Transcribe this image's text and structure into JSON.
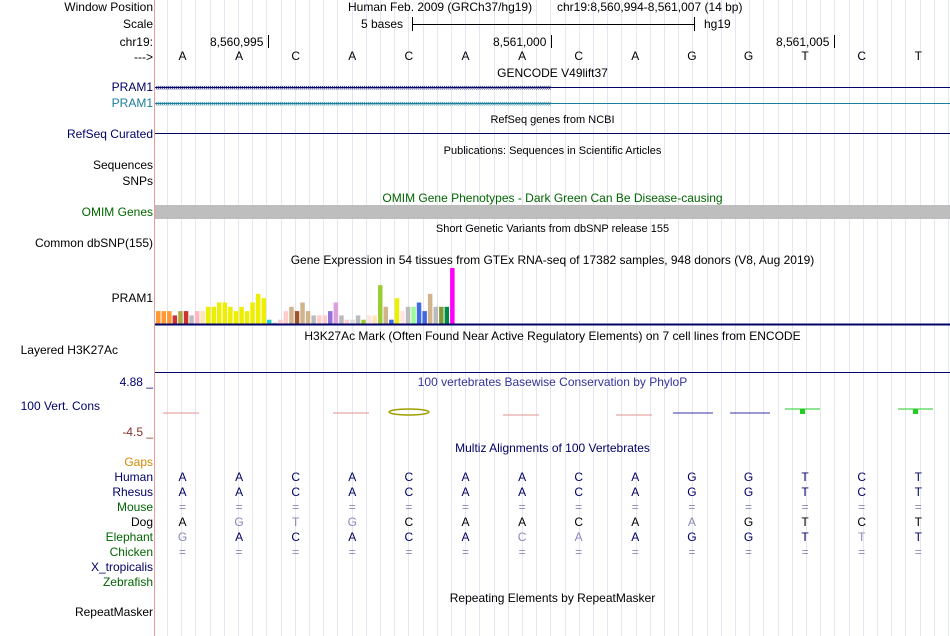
{
  "colors": {
    "navy": "#000066",
    "pram1_teal": "#1a7d9c",
    "omim_green": "#006600",
    "grey_band": "#bebebe",
    "conserv_neg": "#8b2d2d",
    "gaps_orange": "#d08a00",
    "green_species": "#006600"
  },
  "labels": {
    "window_position": "Window Position",
    "scale": "Scale",
    "chr": "chr19:",
    "arrow": "--->",
    "pram1_a": "PRAM1",
    "pram1_b": "PRAM1",
    "refseq": "RefSeq Curated",
    "sequences": "Sequences",
    "snps": "SNPs",
    "omim": "OMIM Genes",
    "common_dbsnp": "Common dbSNP(155)",
    "gtex_gene": "PRAM1",
    "h3k27ac": "Layered H3K27Ac",
    "cons_max": "4.88 _",
    "cons_name": "100 Vert. Cons",
    "cons_min": "-4.5 _",
    "gaps": "Gaps",
    "species": [
      "Human",
      "Rhesus",
      "Mouse",
      "Dog",
      "Elephant",
      "Chicken",
      "X_tropicalis",
      "Zebrafish"
    ],
    "repeatmasker": "RepeatMasker"
  },
  "header": {
    "assembly": "Human Feb. 2009 (GRCh37/hg19)",
    "position": "chr19:8,560,994-8,561,007 (14 bp)",
    "scale_text": "5 bases",
    "scale_db": "hg19",
    "ticks": [
      "8,560,995",
      "8,561,000",
      "8,561,005"
    ]
  },
  "sequence": [
    "A",
    "A",
    "C",
    "A",
    "C",
    "A",
    "A",
    "C",
    "A",
    "G",
    "G",
    "T",
    "C",
    "T"
  ],
  "track_titles": {
    "gencode": "GENCODE V49lift37",
    "refseq": "RefSeq genes from NCBI",
    "publications": "Publications: Sequences in Scientific Articles",
    "omim": "OMIM Gene Phenotypes - Dark Green Can Be Disease-causing",
    "dbsnp": "Short Genetic Variants from dbSNP release 155",
    "gtex": "Gene Expression in 54 tissues from GTEx RNA-seq of 17382 samples, 948 donors (V8, Aug 2019)",
    "h3k27ac": "H3K27Ac Mark (Often Found Near Active Regulatory Elements) on 7 cell lines from ENCODE",
    "phylop": "100 vertebrates Basewise Conservation by PhyloP",
    "multiz": "Multiz Alignments of 100 Vertebrates",
    "repeatmasker": "Repeating Elements by RepeatMasker"
  },
  "alignment": {
    "Human": [
      "A",
      "A",
      "C",
      "A",
      "C",
      "A",
      "A",
      "C",
      "A",
      "G",
      "G",
      "T",
      "C",
      "T"
    ],
    "Rhesus": [
      "A",
      "A",
      "C",
      "A",
      "C",
      "A",
      "A",
      "C",
      "A",
      "G",
      "G",
      "T",
      "C",
      "T"
    ],
    "Mouse": [
      "=",
      "=",
      "=",
      "=",
      "=",
      "=",
      "=",
      "=",
      "=",
      "=",
      "=",
      "=",
      "=",
      "="
    ],
    "Dog": [
      "A",
      "G",
      "T",
      "G",
      "C",
      "A",
      "A",
      "C",
      "A",
      "A",
      "G",
      "T",
      "C",
      "T"
    ],
    "Elephant": [
      "G",
      "A",
      "C",
      "A",
      "C",
      "A",
      "C",
      "A",
      "A",
      "G",
      "G",
      "T",
      "T",
      "T"
    ],
    "Chicken": [
      "=",
      "=",
      "=",
      "=",
      "=",
      "=",
      "=",
      "=",
      "=",
      "=",
      "=",
      "=",
      "=",
      "="
    ]
  },
  "chart_data": {
    "type": "bar",
    "title": "Gene Expression in 54 tissues from GTEx RNA-seq of 17382 samples, 948 donors (V8, Aug 2019)",
    "gene": "PRAM1",
    "ylabel": "",
    "values": [
      3,
      3,
      3,
      2,
      3,
      3,
      2,
      3,
      3,
      4,
      4,
      5,
      5,
      4,
      3,
      4,
      3,
      5,
      7,
      6,
      1,
      0.3,
      1,
      3,
      4,
      3,
      5,
      3,
      2,
      2,
      2,
      3,
      5,
      2,
      1,
      1,
      2,
      1,
      2,
      2,
      9,
      4,
      1,
      6,
      3,
      4,
      4,
      5,
      3,
      7,
      4,
      4,
      4,
      13
    ],
    "colors": [
      "#ff9933",
      "#ff9933",
      "#ff9933",
      "#cc3333",
      "#aaaa44",
      "#cc3333",
      "#bbbbbb",
      "#ffb6c1",
      "#ffe4b5",
      "#eeee00",
      "#eeee00",
      "#eeee00",
      "#eeee00",
      "#eeee00",
      "#eeee00",
      "#eeee00",
      "#eeee00",
      "#eeee00",
      "#eeee00",
      "#eeee00",
      "#22cccc",
      "#bbbbbb",
      "#ffcccc",
      "#ffcccc",
      "#d2b48c",
      "#a0522d",
      "#d2b48c",
      "#d2b48c",
      "#bbbbbb",
      "#ffcccc",
      "#ffcccc",
      "#9370db",
      "#dda0dd",
      "#bbbbbb",
      "#ffcccc",
      "#dddddd",
      "#bbbbbb",
      "#9acd32",
      "#ffe4e1",
      "#ffe4b5",
      "#9acd32",
      "#d2b48c",
      "#4169e1",
      "#eeee00",
      "#ffe4e1",
      "#bbbbbb",
      "#98fb98",
      "#4169e1",
      "#4169e1",
      "#d2b48c",
      "#bbbbbb",
      "#7b9b3b",
      "#008b45",
      "#ff00ff"
    ]
  }
}
